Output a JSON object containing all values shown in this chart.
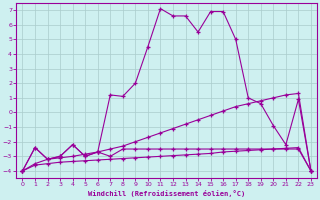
{
  "xlabel": "Windchill (Refroidissement éolien,°C)",
  "background_color": "#cef0f0",
  "grid_color": "#aacccc",
  "line_color": "#990099",
  "xlim": [
    -0.5,
    23.5
  ],
  "ylim": [
    -4.5,
    7.5
  ],
  "xticks": [
    0,
    1,
    2,
    3,
    4,
    5,
    6,
    7,
    8,
    9,
    10,
    11,
    12,
    13,
    14,
    15,
    16,
    17,
    18,
    19,
    20,
    21,
    22,
    23
  ],
  "yticks": [
    -4,
    -3,
    -2,
    -1,
    0,
    1,
    2,
    3,
    4,
    5,
    6,
    7
  ],
  "line1_x": [
    0,
    1,
    2,
    3,
    4,
    5,
    6,
    7,
    8,
    9,
    10,
    11,
    12,
    13,
    14,
    15,
    16,
    17,
    18,
    19,
    20,
    21,
    22,
    23
  ],
  "line1_y": [
    -4.0,
    -3.6,
    -3.5,
    -3.4,
    -3.35,
    -3.3,
    -3.25,
    -3.2,
    -3.15,
    -3.1,
    -3.05,
    -3.0,
    -2.95,
    -2.9,
    -2.85,
    -2.8,
    -2.7,
    -2.65,
    -2.6,
    -2.55,
    -2.5,
    -2.45,
    -2.4,
    -4.0
  ],
  "line2_x": [
    0,
    1,
    2,
    3,
    4,
    5,
    6,
    7,
    8,
    9,
    10,
    11,
    12,
    13,
    14,
    15,
    16,
    17,
    18,
    19,
    20,
    21,
    22,
    23
  ],
  "line2_y": [
    -4.0,
    -3.5,
    -3.2,
    -3.1,
    -3.0,
    -2.85,
    -2.7,
    -2.5,
    -2.3,
    -2.0,
    -1.7,
    -1.4,
    -1.1,
    -0.8,
    -0.5,
    -0.2,
    0.1,
    0.4,
    0.6,
    0.8,
    1.0,
    1.2,
    1.3,
    -4.0
  ],
  "line3_x": [
    0,
    1,
    2,
    3,
    4,
    5,
    6,
    7,
    8,
    9,
    10,
    11,
    12,
    13,
    14,
    15,
    16,
    17,
    18,
    19,
    20,
    21,
    22,
    23
  ],
  "line3_y": [
    -4.0,
    -2.4,
    -3.2,
    -3.0,
    -2.2,
    -3.0,
    -2.7,
    -3.0,
    -2.5,
    -2.5,
    -2.5,
    -2.5,
    -2.5,
    -2.5,
    -2.5,
    -2.5,
    -2.5,
    -2.5,
    -2.5,
    -2.5,
    -2.5,
    -2.5,
    -2.5,
    -4.0
  ],
  "line4_x": [
    0,
    1,
    2,
    3,
    4,
    5,
    6,
    7,
    8,
    9,
    10,
    11,
    12,
    13,
    14,
    15,
    16,
    17,
    18,
    19,
    20,
    21,
    22,
    23
  ],
  "line4_y": [
    -4.0,
    -2.4,
    -3.2,
    -3.0,
    -2.2,
    -3.0,
    -2.7,
    1.2,
    1.1,
    2.0,
    4.5,
    7.1,
    6.6,
    6.6,
    5.5,
    6.9,
    6.9,
    5.0,
    1.0,
    0.6,
    -0.9,
    -2.2,
    0.9,
    -4.0
  ]
}
